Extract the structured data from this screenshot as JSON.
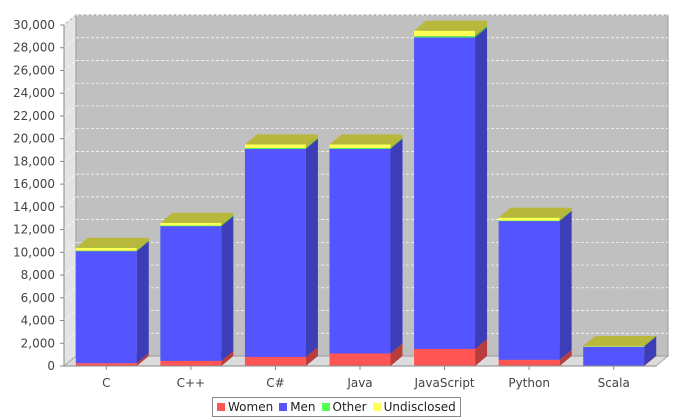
{
  "chart_data": {
    "type": "bar",
    "stacked": true,
    "style": "3d",
    "categories": [
      "C",
      "C++",
      "C#",
      "Java",
      "JavaScript",
      "Python",
      "Scala"
    ],
    "series": [
      {
        "name": "Women",
        "color": "#ff5555",
        "values": [
          250,
          450,
          800,
          1100,
          1500,
          550,
          30
        ]
      },
      {
        "name": "Men",
        "color": "#5555ff",
        "values": [
          9850,
          11850,
          18300,
          18000,
          27400,
          12200,
          1700
        ]
      },
      {
        "name": "Other",
        "color": "#55ff55",
        "values": [
          40,
          60,
          80,
          80,
          120,
          50,
          5
        ]
      },
      {
        "name": "Undisclosed",
        "color": "#ffff55",
        "values": [
          260,
          240,
          320,
          320,
          480,
          250,
          20
        ]
      }
    ],
    "ylim": [
      0,
      30000
    ],
    "yticks": [
      "0",
      "2,000",
      "4,000",
      "6,000",
      "8,000",
      "10,000",
      "12,000",
      "14,000",
      "16,000",
      "18,000",
      "20,000",
      "22,000",
      "24,000",
      "26,000",
      "28,000",
      "30,000"
    ],
    "grid": true,
    "legend_position": "bottom",
    "plot_background": "#c0c0c0"
  }
}
